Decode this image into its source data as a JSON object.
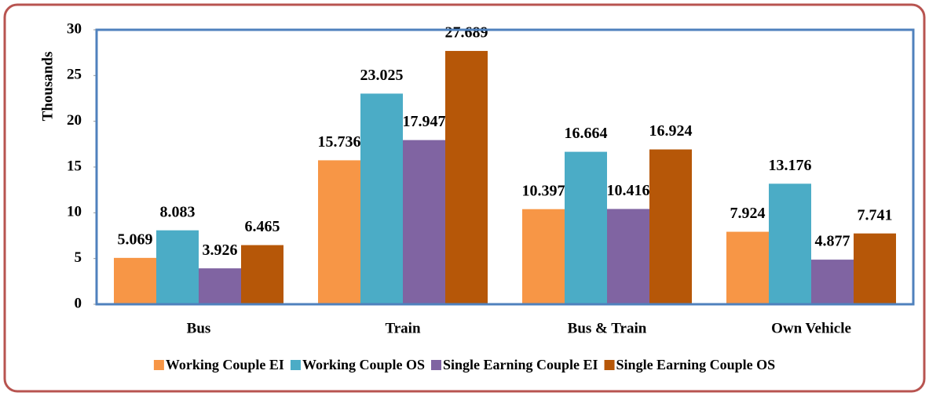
{
  "chart_data": {
    "type": "bar",
    "y_label": "Thousands",
    "categories": [
      "Bus",
      "Train",
      "Bus & Train",
      "Own Vehicle"
    ],
    "series": [
      {
        "name": "Working Couple EI",
        "color": "#f79646",
        "values": [
          5.069,
          15.736,
          10.397,
          7.924
        ]
      },
      {
        "name": "Working Couple OS",
        "color": "#4bacc6",
        "values": [
          8.083,
          23.025,
          16.664,
          13.176
        ]
      },
      {
        "name": "Single Earning Couple EI",
        "color": "#8064a2",
        "values": [
          3.926,
          17.947,
          10.416,
          4.877
        ]
      },
      {
        "name": "Single Earning Couple OS",
        "color": "#b65708",
        "values": [
          6.465,
          27.689,
          16.924,
          7.741
        ]
      }
    ],
    "ylim": [
      0,
      30
    ],
    "yticks": [
      0,
      5,
      10,
      15,
      20,
      25,
      30
    ],
    "legend": "bottom"
  }
}
